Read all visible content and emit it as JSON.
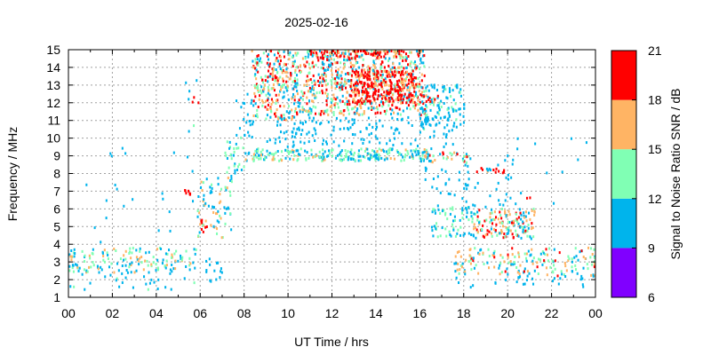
{
  "chart_data": {
    "type": "heatmap",
    "title": "2025-02-16",
    "xlabel": "UT Time / hrs",
    "ylabel": "Frequency / MHz",
    "xlim": [
      0,
      24
    ],
    "ylim": [
      1,
      15
    ],
    "x_ticks": [
      "00",
      "02",
      "04",
      "06",
      "08",
      "10",
      "12",
      "14",
      "16",
      "18",
      "20",
      "22",
      "00"
    ],
    "y_ticks": [
      "1",
      "2",
      "3",
      "4",
      "5",
      "6",
      "7",
      "8",
      "9",
      "10",
      "11",
      "12",
      "13",
      "14",
      "15"
    ],
    "grid": true,
    "colorbar": {
      "label": "Signal to Noise Ratio SNR / dB",
      "ticks": [
        "6",
        "9",
        "12",
        "15",
        "18",
        "21"
      ],
      "bins": [
        {
          "from": 6,
          "to": 9,
          "color": "#8000ff"
        },
        {
          "from": 9,
          "to": 12,
          "color": "#00b4ec"
        },
        {
          "from": 12,
          "to": 15,
          "color": "#80ffb4"
        },
        {
          "from": 15,
          "to": 18,
          "color": "#ffb464"
        },
        {
          "from": 18,
          "to": 21,
          "color": "#ff0000"
        }
      ]
    },
    "regions": [
      {
        "t": [
          0.0,
          5.8
        ],
        "f": [
          2.4,
          3.8
        ],
        "n": 150,
        "snr": [
          9,
          17
        ]
      },
      {
        "t": [
          0.0,
          5.8
        ],
        "f": [
          1.4,
          2.4
        ],
        "n": 28,
        "snr": [
          9,
          13
        ]
      },
      {
        "t": [
          0.2,
          5.8
        ],
        "f": [
          3.8,
          9.5
        ],
        "n": 14,
        "snr": [
          9,
          12
        ]
      },
      {
        "t": [
          5.2,
          5.6
        ],
        "f": [
          6.8,
          7.1
        ],
        "n": 7,
        "snr": [
          18,
          21
        ]
      },
      {
        "t": [
          5.5,
          5.9
        ],
        "f": [
          12.0,
          12.4
        ],
        "n": 3,
        "snr": [
          18,
          21
        ]
      },
      {
        "t": [
          5.3,
          5.8
        ],
        "f": [
          10.0,
          14.0
        ],
        "n": 6,
        "snr": [
          9,
          13
        ]
      },
      {
        "t": [
          5.8,
          7.4
        ],
        "f": [
          4.3,
          7.8
        ],
        "n": 70,
        "snr": [
          9,
          17
        ]
      },
      {
        "t": [
          6.0,
          6.3
        ],
        "f": [
          4.6,
          5.4
        ],
        "n": 8,
        "snr": [
          17,
          21
        ]
      },
      {
        "t": [
          6.2,
          7.0
        ],
        "f": [
          1.8,
          3.2
        ],
        "n": 16,
        "snr": [
          9,
          12
        ]
      },
      {
        "t": [
          7.0,
          8.0
        ],
        "f": [
          7.8,
          10.2
        ],
        "n": 30,
        "snr": [
          9,
          15
        ]
      },
      {
        "t": [
          7.6,
          8.4
        ],
        "f": [
          10.0,
          12.5
        ],
        "n": 22,
        "snr": [
          9,
          12
        ]
      },
      {
        "t": [
          8.0,
          16.5
        ],
        "f": [
          8.7,
          9.4
        ],
        "n": 240,
        "snr": [
          9,
          16
        ]
      },
      {
        "t": [
          8.3,
          10.5
        ],
        "f": [
          11.0,
          15.0
        ],
        "n": 260,
        "snr": [
          9,
          21
        ]
      },
      {
        "t": [
          10.5,
          16.2
        ],
        "f": [
          11.3,
          15.0
        ],
        "n": 700,
        "snr": [
          9,
          21
        ]
      },
      {
        "t": [
          12.8,
          15.8
        ],
        "f": [
          12.0,
          13.8
        ],
        "n": 260,
        "snr": [
          17,
          21
        ]
      },
      {
        "t": [
          11.0,
          15.2
        ],
        "f": [
          14.5,
          15.0
        ],
        "n": 70,
        "snr": [
          17,
          21
        ]
      },
      {
        "t": [
          9.0,
          17.5
        ],
        "f": [
          9.5,
          11.2
        ],
        "n": 150,
        "snr": [
          9,
          12
        ]
      },
      {
        "t": [
          16.0,
          18.0
        ],
        "f": [
          10.5,
          13.0
        ],
        "n": 110,
        "snr": [
          9,
          13
        ]
      },
      {
        "t": [
          16.0,
          16.8
        ],
        "f": [
          12.0,
          12.7
        ],
        "n": 12,
        "snr": [
          17,
          21
        ]
      },
      {
        "t": [
          16.0,
          18.3
        ],
        "f": [
          8.6,
          9.2
        ],
        "n": 35,
        "snr": [
          9,
          20
        ]
      },
      {
        "t": [
          16.5,
          18.5
        ],
        "f": [
          4.4,
          6.2
        ],
        "n": 70,
        "snr": [
          9,
          15
        ]
      },
      {
        "t": [
          18.3,
          21.2
        ],
        "f": [
          4.3,
          6.0
        ],
        "n": 150,
        "snr": [
          9,
          21
        ]
      },
      {
        "t": [
          18.5,
          19.8
        ],
        "f": [
          8.0,
          8.3
        ],
        "n": 12,
        "snr": [
          17,
          21
        ]
      },
      {
        "t": [
          18.0,
          20.5
        ],
        "f": [
          6.0,
          9.0
        ],
        "n": 28,
        "snr": [
          9,
          12
        ]
      },
      {
        "t": [
          16.2,
          18.2
        ],
        "f": [
          6.5,
          8.5
        ],
        "n": 28,
        "snr": [
          9,
          12
        ]
      },
      {
        "t": [
          17.5,
          24.0
        ],
        "f": [
          2.2,
          3.8
        ],
        "n": 170,
        "snr": [
          9,
          19
        ]
      },
      {
        "t": [
          17.5,
          24.0
        ],
        "f": [
          1.5,
          2.4
        ],
        "n": 30,
        "snr": [
          9,
          12
        ]
      },
      {
        "t": [
          19.5,
          24.0
        ],
        "f": [
          5.8,
          10.0
        ],
        "n": 14,
        "snr": [
          9,
          12
        ]
      },
      {
        "t": [
          20.8,
          21.0
        ],
        "f": [
          6.5,
          6.8
        ],
        "n": 2,
        "snr": [
          18,
          21
        ]
      },
      {
        "t": [
          0.5,
          5.0
        ],
        "f": [
          4.0,
          8.5
        ],
        "n": 8,
        "snr": [
          9,
          12
        ]
      }
    ]
  }
}
